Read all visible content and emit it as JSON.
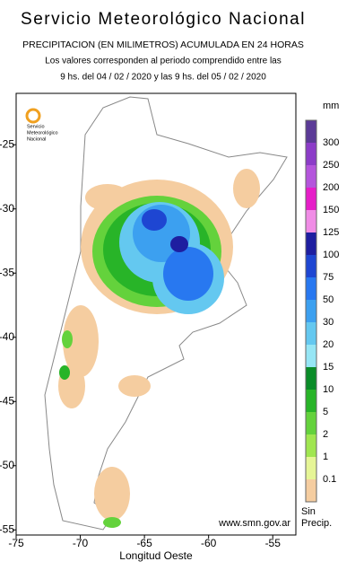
{
  "header": {
    "title": "Servicio Meteorológico Nacional",
    "subtitle": "PRECIPITACION (EN MILIMETROS) ACUMULADA EN 24 HORAS",
    "period_line1": "Los valores corresponden al periodo comprendido entre las",
    "period_line2": "9 hs. del 04 / 02 / 2020  y las 9 hs. del 05 / 02 / 2020"
  },
  "logo": {
    "lines": [
      "Servicio",
      "Meteorológico",
      "Nacional"
    ]
  },
  "map": {
    "xlim": [
      -75,
      -53.2
    ],
    "ylim": [
      -55.4,
      -21
    ],
    "xticks": [
      -75,
      -70,
      -65,
      -60,
      -55
    ],
    "yticks": [
      -25,
      -30,
      -35,
      -40,
      -45,
      -50,
      -55
    ],
    "xlabel": "Longitud Oeste",
    "url": "www.smn.gov.ar"
  },
  "legend": {
    "unit": "mm",
    "entries": [
      {
        "label": "300",
        "color": "#5b3a97"
      },
      {
        "label": "250",
        "color": "#8c3cc8"
      },
      {
        "label": "200",
        "color": "#b455dc"
      },
      {
        "label": "150",
        "color": "#e61ec8"
      },
      {
        "label": "125",
        "color": "#f08ce6"
      },
      {
        "label": "100",
        "color": "#1e1ea0"
      },
      {
        "label": "75",
        "color": "#1e46d2"
      },
      {
        "label": "50",
        "color": "#2878f0"
      },
      {
        "label": "30",
        "color": "#3ca0f0"
      },
      {
        "label": "20",
        "color": "#64c8f0"
      },
      {
        "label": "15",
        "color": "#96e6f5"
      },
      {
        "label": "10",
        "color": "#0a8c28"
      },
      {
        "label": "5",
        "color": "#28b428"
      },
      {
        "label": "2",
        "color": "#64d23c"
      },
      {
        "label": "1",
        "color": "#a0e650"
      },
      {
        "label": "0.1",
        "color": "#e6f596"
      }
    ],
    "no_precip": {
      "lines": [
        "Sin",
        "Precip."
      ],
      "color": "#f5cda0"
    }
  }
}
